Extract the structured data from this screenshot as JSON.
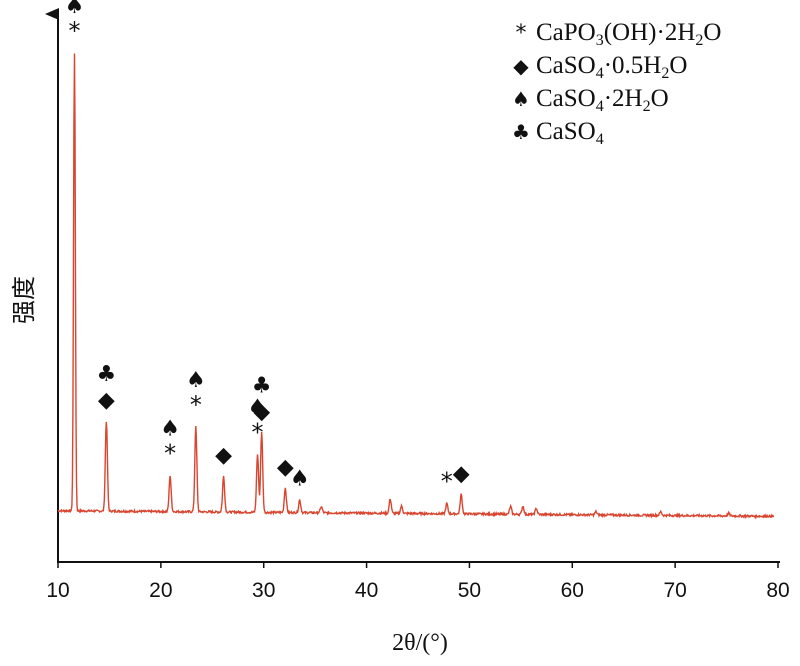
{
  "chart_data": {
    "type": "line",
    "xlabel": "2θ/(°)",
    "ylabel": "强度",
    "xlim": [
      10,
      80
    ],
    "ylim": [
      0,
      1000
    ],
    "x_ticks": [
      "10",
      "20",
      "30",
      "40",
      "50",
      "60",
      "70",
      "80"
    ],
    "y_ticks_shown": false,
    "grid": false,
    "line_color": "#d9452f",
    "series": [
      {
        "name": "",
        "baseline": 18,
        "peaks": [
          {
            "x": 11.6,
            "y": 890
          },
          {
            "x": 14.7,
            "y": 175
          },
          {
            "x": 20.9,
            "y": 70
          },
          {
            "x": 23.4,
            "y": 165
          },
          {
            "x": 26.1,
            "y": 70
          },
          {
            "x": 29.4,
            "y": 112
          },
          {
            "x": 29.8,
            "y": 155
          },
          {
            "x": 32.1,
            "y": 48
          },
          {
            "x": 33.5,
            "y": 25
          },
          {
            "x": 35.6,
            "y": 12
          },
          {
            "x": 42.3,
            "y": 28
          },
          {
            "x": 43.4,
            "y": 14
          },
          {
            "x": 47.8,
            "y": 20
          },
          {
            "x": 49.2,
            "y": 38
          },
          {
            "x": 54.0,
            "y": 15
          },
          {
            "x": 55.2,
            "y": 16
          },
          {
            "x": 56.5,
            "y": 12
          },
          {
            "x": 62.3,
            "y": 6
          },
          {
            "x": 68.6,
            "y": 7
          },
          {
            "x": 75.2,
            "y": 5
          }
        ]
      }
    ],
    "legend": {
      "placement": "top-right",
      "entries": [
        {
          "symbol": "*",
          "parts": [
            {
              "t": "CaPO"
            },
            {
              "t": "3",
              "sub": true
            },
            {
              "t": "(OH)·2H"
            },
            {
              "t": "2",
              "sub": true
            },
            {
              "t": "O"
            }
          ]
        },
        {
          "symbol": "◆",
          "parts": [
            {
              "t": "CaSO"
            },
            {
              "t": "4",
              "sub": true
            },
            {
              "t": "·0.5H"
            },
            {
              "t": "2",
              "sub": true
            },
            {
              "t": "O"
            }
          ]
        },
        {
          "symbol": "♠",
          "parts": [
            {
              "t": "CaSO"
            },
            {
              "t": "4",
              "sub": true
            },
            {
              "t": "·2H"
            },
            {
              "t": "2",
              "sub": true
            },
            {
              "t": "O"
            }
          ]
        },
        {
          "symbol": "♣",
          "parts": [
            {
              "t": "CaSO"
            },
            {
              "t": "4",
              "sub": true
            }
          ]
        }
      ]
    },
    "annotations": [
      {
        "x": 11.6,
        "symbols": [
          "*",
          "♠"
        ]
      },
      {
        "x": 14.7,
        "symbols": [
          "◆",
          "♣"
        ]
      },
      {
        "x": 20.9,
        "symbols": [
          "*",
          "♠"
        ]
      },
      {
        "x": 23.4,
        "symbols": [
          "*",
          "♠"
        ]
      },
      {
        "x": 26.1,
        "symbols": [
          "◆"
        ]
      },
      {
        "x": 29.4,
        "symbols": [
          "*",
          "♠"
        ]
      },
      {
        "x": 29.8,
        "symbols": [
          "◆",
          "♣"
        ]
      },
      {
        "x": 32.1,
        "symbols": [
          "◆"
        ]
      },
      {
        "x": 33.5,
        "symbols": [
          "♠"
        ]
      },
      {
        "x": 47.8,
        "symbols": [
          "*"
        ]
      },
      {
        "x": 49.2,
        "symbols": [
          "◆"
        ]
      }
    ]
  }
}
